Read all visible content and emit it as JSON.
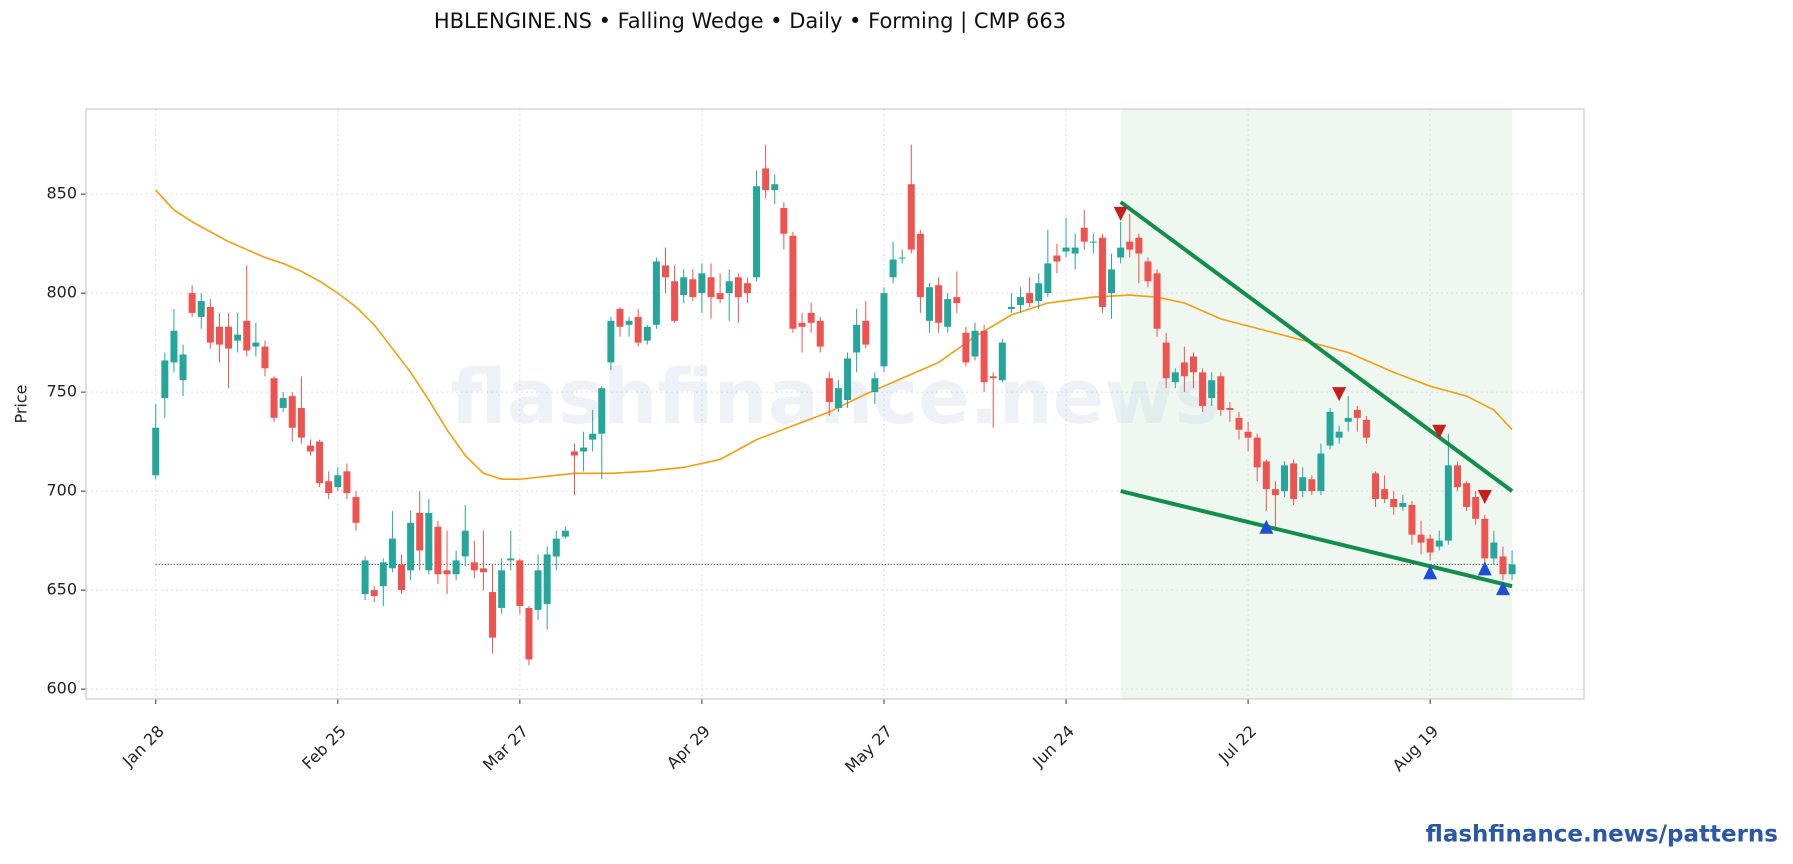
{
  "chart_data": {
    "type": "candlestick",
    "title": "HBLENGINE.NS  •  Falling Wedge  •  Daily  •  Forming  |  CMP 663",
    "ylabel": "Price",
    "watermark": "flashfinance.news",
    "footer": "flashfinance.news/patterns",
    "categories": [
      "Jan 28",
      null,
      null,
      null,
      null,
      null,
      null,
      null,
      null,
      null,
      null,
      null,
      null,
      null,
      null,
      null,
      null,
      null,
      null,
      null,
      "Feb 25",
      null,
      null,
      null,
      null,
      null,
      null,
      null,
      null,
      null,
      null,
      null,
      null,
      null,
      null,
      null,
      null,
      null,
      null,
      null,
      "Mar 27",
      null,
      null,
      null,
      null,
      null,
      null,
      null,
      null,
      null,
      null,
      null,
      null,
      null,
      null,
      null,
      null,
      null,
      null,
      null,
      "Apr 29",
      null,
      null,
      null,
      null,
      null,
      null,
      null,
      null,
      null,
      null,
      null,
      null,
      null,
      null,
      null,
      null,
      null,
      null,
      null,
      "May 27",
      null,
      null,
      null,
      null,
      null,
      null,
      null,
      null,
      null,
      null,
      null,
      null,
      null,
      null,
      null,
      null,
      null,
      null,
      null,
      "Jun 24",
      null,
      null,
      null,
      null,
      null,
      null,
      null,
      null,
      null,
      null,
      null,
      null,
      null,
      null,
      null,
      null,
      null,
      null,
      null,
      "Jul 22",
      null,
      null,
      null,
      null,
      null,
      null,
      null,
      null,
      null,
      null,
      null,
      null,
      null,
      null,
      null,
      null,
      null,
      null,
      null,
      "Aug 19",
      null,
      null,
      null,
      null,
      null,
      null,
      null,
      null,
      null
    ],
    "open": [
      708,
      747,
      765,
      756,
      800,
      788,
      793,
      783,
      783,
      776,
      786,
      773,
      773,
      757,
      742,
      748,
      742,
      723,
      725,
      705,
      702,
      710,
      697,
      648,
      650,
      652,
      661,
      663,
      660,
      689,
      660,
      682,
      660,
      658,
      667,
      664,
      661,
      649,
      641,
      665,
      665,
      641,
      640,
      643,
      667,
      677,
      720,
      720,
      726,
      729,
      765,
      792,
      784,
      788,
      776,
      784,
      814,
      806,
      799,
      807,
      800,
      808,
      800,
      800,
      808,
      805,
      808,
      863,
      852,
      843,
      829,
      785,
      790,
      786,
      757,
      742,
      746,
      770,
      786,
      750,
      763,
      808,
      818,
      855,
      830,
      786,
      804,
      783,
      798,
      780,
      768,
      781,
      758,
      756,
      792,
      794,
      800,
      796,
      800,
      819,
      821,
      820,
      833,
      826,
      828,
      800,
      818,
      826,
      828,
      816,
      810,
      775,
      755,
      765,
      768,
      760,
      747,
      758,
      742,
      737,
      730,
      727,
      715,
      701,
      700,
      714,
      700,
      706,
      700,
      723,
      727,
      735,
      741,
      736,
      709,
      701,
      696,
      692,
      693,
      678,
      676,
      672,
      675,
      713,
      704,
      697,
      686,
      666,
      667,
      658
    ],
    "high": [
      744,
      770,
      792,
      774,
      804,
      800,
      797,
      790,
      790,
      790,
      814,
      785,
      776,
      758,
      750,
      750,
      758,
      726,
      726,
      710,
      712,
      714,
      700,
      667,
      652,
      666,
      690,
      668,
      690,
      700,
      696,
      685,
      680,
      670,
      693,
      675,
      680,
      663,
      666,
      680,
      666,
      642,
      668,
      672,
      680,
      682,
      724,
      730,
      741,
      753,
      788,
      793,
      788,
      792,
      784,
      818,
      823,
      814,
      812,
      812,
      815,
      815,
      810,
      812,
      810,
      808,
      862,
      875,
      860,
      846,
      831,
      790,
      795,
      788,
      760,
      756,
      770,
      792,
      796,
      760,
      803,
      826,
      822,
      875,
      832,
      805,
      808,
      800,
      811,
      783,
      785,
      784,
      760,
      777,
      800,
      803,
      808,
      810,
      832,
      825,
      838,
      830,
      842,
      830,
      830,
      820,
      836,
      840,
      830,
      818,
      812,
      780,
      762,
      773,
      770,
      762,
      760,
      760,
      745,
      740,
      735,
      729,
      716,
      705,
      715,
      716,
      712,
      708,
      724,
      742,
      733,
      748,
      743,
      738,
      710,
      708,
      700,
      698,
      695,
      685,
      678,
      680,
      729,
      715,
      705,
      700,
      688,
      680,
      672,
      670
    ],
    "low": [
      706,
      737,
      760,
      748,
      788,
      782,
      772,
      765,
      752,
      770,
      768,
      768,
      758,
      735,
      740,
      725,
      724,
      718,
      702,
      696,
      700,
      696,
      680,
      645,
      644,
      642,
      659,
      648,
      655,
      660,
      658,
      653,
      648,
      655,
      662,
      656,
      650,
      618,
      638,
      660,
      638,
      612,
      635,
      630,
      660,
      676,
      698,
      710,
      720,
      706,
      761,
      778,
      778,
      773,
      774,
      782,
      800,
      785,
      795,
      796,
      790,
      787,
      795,
      786,
      785,
      795,
      806,
      848,
      845,
      822,
      780,
      770,
      780,
      770,
      738,
      740,
      742,
      760,
      772,
      744,
      760,
      805,
      815,
      820,
      790,
      780,
      780,
      780,
      790,
      763,
      766,
      750,
      732,
      755,
      790,
      790,
      793,
      792,
      798,
      810,
      818,
      812,
      822,
      820,
      790,
      787,
      815,
      818,
      805,
      803,
      778,
      752,
      752,
      750,
      752,
      740,
      743,
      738,
      735,
      726,
      720,
      705,
      690,
      680,
      697,
      693,
      697,
      698,
      698,
      721,
      724,
      730,
      730,
      724,
      692,
      694,
      688,
      690,
      673,
      668,
      665,
      670,
      673,
      700,
      690,
      683,
      663,
      663,
      655,
      655
    ],
    "close": [
      732,
      766,
      781,
      769,
      790,
      796,
      775,
      774,
      772,
      779,
      771,
      775,
      762,
      737,
      747,
      732,
      727,
      720,
      704,
      699,
      708,
      699,
      684,
      665,
      647,
      664,
      676,
      650,
      684,
      670,
      689,
      658,
      658,
      665,
      680,
      660,
      659,
      626,
      660,
      666,
      642,
      615,
      660,
      668,
      676,
      680,
      718,
      722,
      729,
      752,
      786,
      783,
      786,
      775,
      783,
      816,
      808,
      786,
      808,
      798,
      810,
      798,
      797,
      806,
      798,
      800,
      854,
      852,
      855,
      830,
      782,
      783,
      785,
      773,
      745,
      752,
      767,
      784,
      774,
      757,
      800,
      817,
      818,
      822,
      798,
      803,
      785,
      797,
      795,
      765,
      781,
      755,
      757,
      775,
      793,
      798,
      795,
      805,
      815,
      816,
      823,
      823,
      826,
      826,
      793,
      812,
      823,
      822,
      820,
      806,
      782,
      757,
      760,
      758,
      760,
      743,
      756,
      741,
      741,
      731,
      727,
      712,
      701,
      698,
      713,
      696,
      707,
      700,
      719,
      740,
      730,
      737,
      737,
      727,
      696,
      696,
      692,
      694,
      678,
      674,
      669,
      675,
      713,
      702,
      692,
      686,
      666,
      674,
      658,
      663
    ],
    "up_color": "#26a69a",
    "down_color": "#ef5350",
    "ma": {
      "color": "#f59e0b",
      "x": [
        0,
        2,
        4,
        6,
        8,
        10,
        12,
        14,
        16,
        18,
        20,
        22,
        24,
        26,
        28,
        30,
        32,
        34,
        36,
        38,
        40,
        42,
        44,
        46,
        50,
        54,
        58,
        62,
        66,
        70,
        74,
        78,
        82,
        86,
        90,
        94,
        98,
        103,
        107,
        110,
        113,
        117,
        122,
        127,
        131,
        136,
        140,
        144,
        147,
        149
      ],
      "values": [
        852,
        842,
        836,
        831,
        826,
        822,
        818,
        815,
        811,
        806,
        800,
        793,
        784,
        772,
        760,
        746,
        731,
        718,
        709,
        706,
        706,
        707,
        708,
        709,
        709,
        710,
        712,
        716,
        726,
        733,
        740,
        749,
        757,
        765,
        778,
        789,
        795,
        798,
        799,
        798,
        795,
        787,
        781,
        775,
        770,
        760,
        753,
        748,
        741,
        731
      ]
    },
    "pattern_zone": {
      "x": [
        106,
        149
      ],
      "color": "#e3f3e8"
    },
    "trend_upper": {
      "x": [
        106,
        149
      ],
      "values": [
        846,
        700
      ],
      "color": "#138d4a"
    },
    "trend_lower": {
      "x": [
        106,
        149
      ],
      "values": [
        700,
        652
      ],
      "color": "#138d4a"
    },
    "cmp_line": {
      "x": [
        0,
        149
      ],
      "value": 663
    },
    "swing_highs": {
      "x": [
        106,
        130,
        141,
        146
      ],
      "values": [
        840,
        749,
        730,
        697
      ],
      "color": "#c81e1e"
    },
    "swing_lows": {
      "x": [
        122,
        140,
        146,
        148
      ],
      "values": [
        682,
        659,
        661,
        651
      ],
      "color": "#1d4ed8"
    },
    "xlim": [
      -7.66,
      156.9
    ],
    "ylim": [
      595,
      893
    ],
    "yticks": [
      600,
      650,
      700,
      750,
      800,
      850
    ],
    "grid": true
  }
}
